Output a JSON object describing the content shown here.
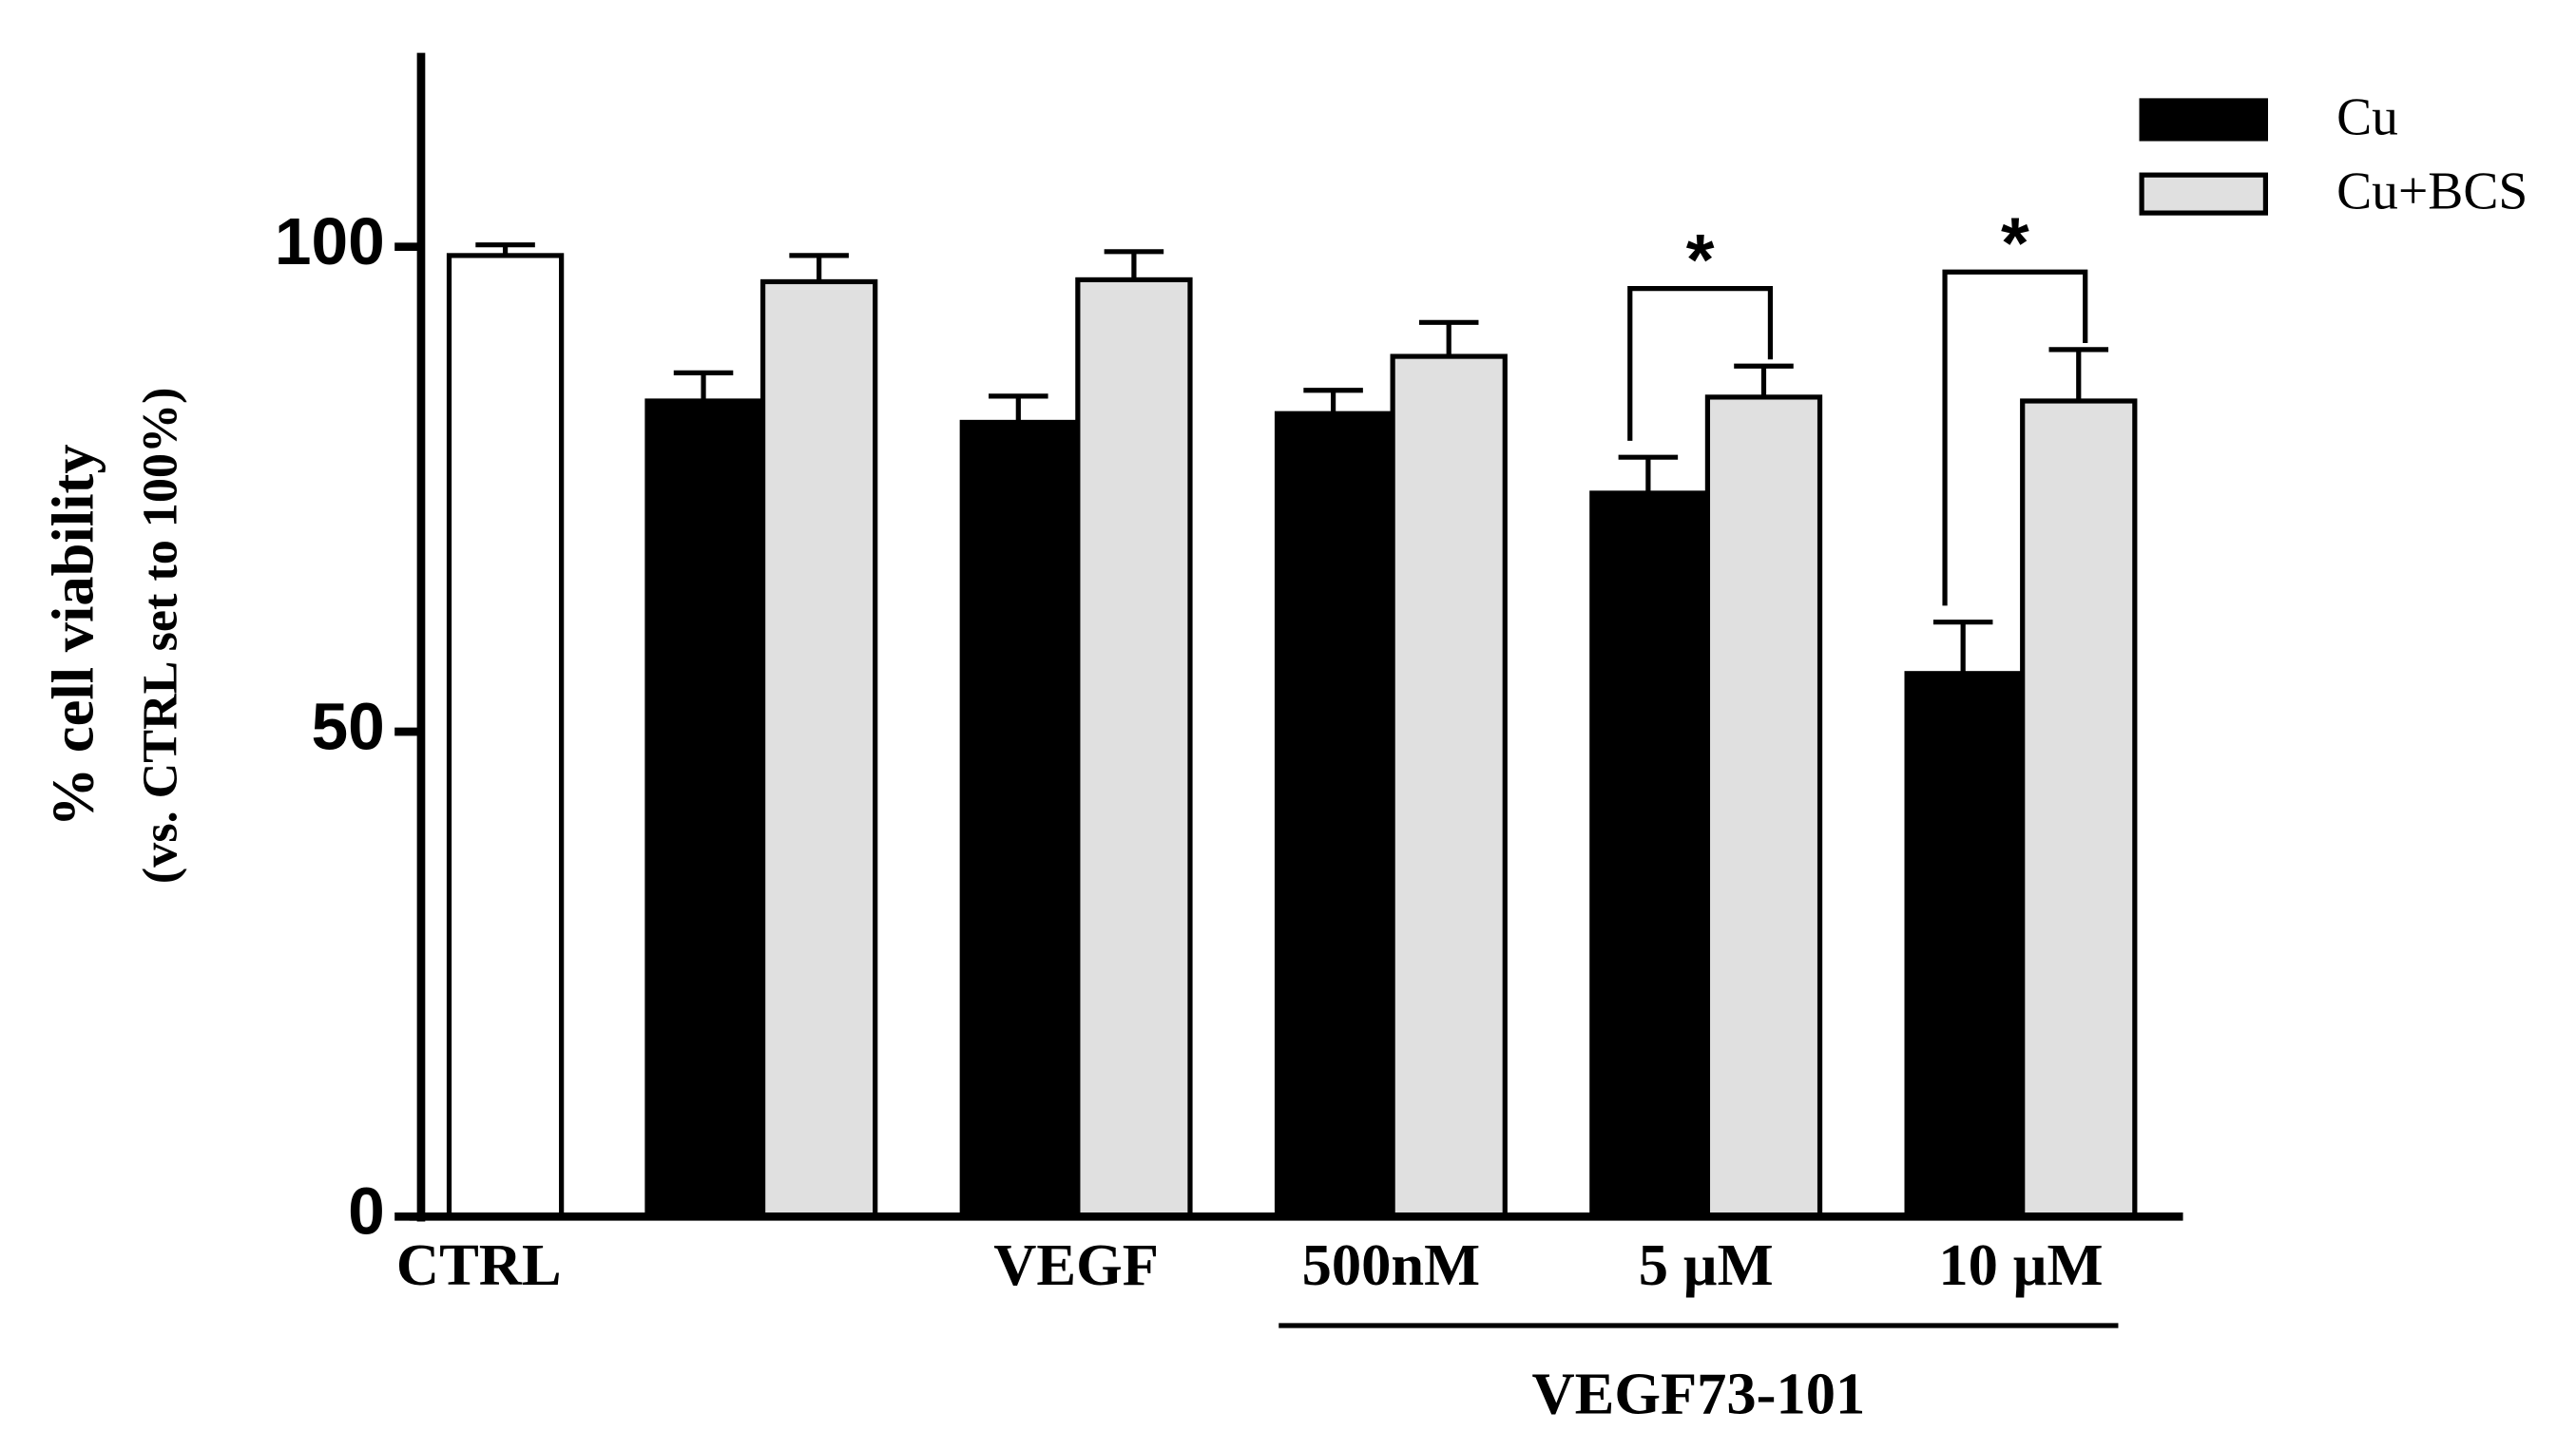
{
  "chart_data": {
    "type": "bar",
    "ylabel": [
      "% cell viability",
      "(vs. CTRL set to 100%)"
    ],
    "categories": [
      "CTRL",
      null,
      "VEGF",
      "500nM",
      "5 µM",
      "10 µM"
    ],
    "control_bar": {
      "value": 99.1,
      "error": 1.1,
      "color": "#ffffff"
    },
    "series": [
      {
        "name": "Cu",
        "color": "#000000",
        "values": [
          null,
          84.1,
          81.9,
          82.8,
          74.6,
          56.0
        ],
        "errors": [
          null,
          2.9,
          2.7,
          2.4,
          3.7,
          5.3
        ]
      },
      {
        "name": "Cu+BCS",
        "color": "#e0e0e0",
        "values": [
          null,
          96.4,
          96.6,
          88.7,
          84.5,
          84.1
        ],
        "errors": [
          null,
          2.7,
          2.9,
          3.5,
          3.2,
          5.3
        ]
      }
    ],
    "significance": [
      {
        "label": "*",
        "category": "5 µM"
      },
      {
        "label": "*",
        "category": "10 µM"
      }
    ],
    "group": {
      "label": "VEGF73-101",
      "categories": [
        "500nM",
        "5 µM",
        "10 µM"
      ]
    },
    "ylim": [
      0,
      120
    ],
    "yticks": [
      0,
      50,
      100
    ],
    "legend": "top-right"
  }
}
